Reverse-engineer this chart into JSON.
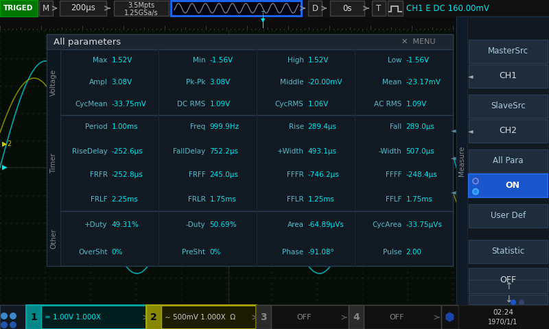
{
  "bg_color": "#0a0a14",
  "screen_bg": "#060d06",
  "grid_color": "#152015",
  "top_bar_bg": "#111111",
  "cyan": "#00e8f0",
  "yellow": "#c8c800",
  "white": "#ffffff",
  "triged_bg": "#007700",
  "panel_bg": "#111a22",
  "panel_header_bg": "#1a2530",
  "right_panel_bg": "#111820",
  "right_btn_bg": "#1e2c3a",
  "right_btn_selected": "#1a55cc",
  "separator_color": "#2a3d50",
  "measurements": {
    "voltage": [
      [
        [
          "Max",
          "1.52V"
        ],
        [
          "Min",
          "-1.56V"
        ],
        [
          "High",
          "1.52V"
        ],
        [
          "Low",
          "-1.56V"
        ]
      ],
      [
        [
          "Ampl",
          "3.08V"
        ],
        [
          "Pk-Pk",
          "3.08V"
        ],
        [
          "Middle",
          "-20.00mV"
        ],
        [
          "Mean",
          "-23.17mV"
        ]
      ],
      [
        [
          "CycMean",
          "-33.75mV"
        ],
        [
          "DC RMS",
          "1.09V"
        ],
        [
          "CycRMS",
          "1.06V"
        ],
        [
          "AC RMS",
          "1.09V"
        ]
      ]
    ],
    "timer": [
      [
        [
          "Period",
          "1.00ms"
        ],
        [
          "Freq",
          "999.9Hz"
        ],
        [
          "Rise",
          "289.4μs"
        ],
        [
          "Fall",
          "289.0μs"
        ]
      ],
      [
        [
          "RiseDelay",
          "-252.6μs"
        ],
        [
          "FallDelay",
          "752.2μs"
        ],
        [
          "+Width",
          "493.1μs"
        ],
        [
          "-Width",
          "507.0μs"
        ]
      ],
      [
        [
          "FRFR",
          "-252.8μs"
        ],
        [
          "FRFF",
          "245.0μs"
        ],
        [
          "FFFR",
          "-746.2μs"
        ],
        [
          "FFFF",
          "-248.4μs"
        ]
      ],
      [
        [
          "FRLF",
          "2.25ms"
        ],
        [
          "FRLR",
          "1.75ms"
        ],
        [
          "FFLR",
          "1.25ms"
        ],
        [
          "FFLF",
          "1.75ms"
        ]
      ]
    ],
    "other": [
      [
        [
          "+Duty",
          "49.31%"
        ],
        [
          "-Duty",
          "50.69%"
        ],
        [
          "Area",
          "-64.89μVs"
        ],
        [
          "CycArea",
          "-33.75μVs"
        ]
      ],
      [
        [
          "OverSht",
          "0%"
        ],
        [
          "PreSht",
          "0%"
        ],
        [
          "Phase",
          "-91.08°"
        ],
        [
          "Pulse",
          "2.00"
        ]
      ]
    ]
  },
  "right_menu": [
    {
      "label": "MasterSrc",
      "type": "header"
    },
    {
      "label": "CH1",
      "type": "value",
      "arrow": true
    },
    {
      "label": "SlaveSrc",
      "type": "header"
    },
    {
      "label": "CH2",
      "type": "value",
      "arrow": true
    },
    {
      "label": "All Para",
      "type": "header"
    },
    {
      "label": "ON",
      "type": "selected"
    },
    {
      "label": "User Def",
      "type": "header"
    },
    {
      "label": "Statistic",
      "type": "header"
    },
    {
      "label": "OFF",
      "type": "value"
    }
  ],
  "bottom_channels": [
    {
      "num": "1",
      "bg": "#001e1e",
      "border": "#00cccc",
      "num_bg": "#00aaaa",
      "label": "= 1.00V 1.000X",
      "label_color": "#00e8f0"
    },
    {
      "num": "2",
      "bg": "#1e1e00",
      "border": "#bbbb00",
      "num_bg": "#aaaa00",
      "label": "∼ 500mV 1.000X  Ω",
      "label_color": "#cccccc"
    },
    {
      "num": "3",
      "bg": "#111111",
      "border": "#444444",
      "num_bg": "#333333",
      "label": "OFF",
      "label_color": "#888888"
    },
    {
      "num": "4",
      "bg": "#111111",
      "border": "#444444",
      "num_bg": "#333333",
      "label": "OFF",
      "label_color": "#888888"
    }
  ]
}
